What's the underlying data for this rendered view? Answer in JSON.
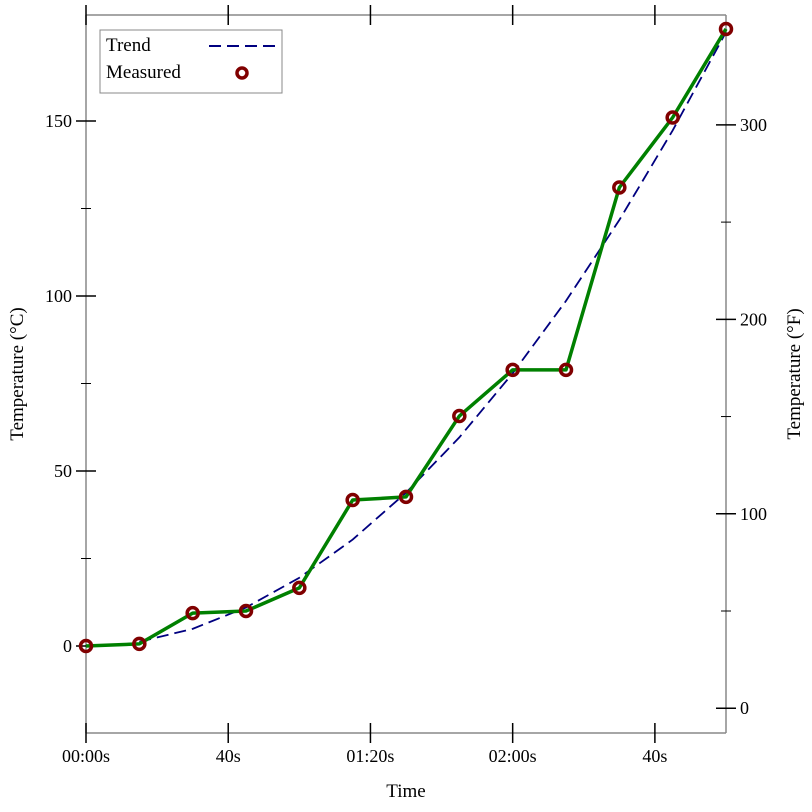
{
  "chart_data": {
    "type": "line",
    "xlabel": "Time",
    "ylabel": "Temperature (°C)",
    "ylabel_right": "Temperature (°F)",
    "xlim": [
      0,
      180
    ],
    "ylim": [
      -25,
      180
    ],
    "x_ticks": [
      {
        "value": 0,
        "label": "00:00s"
      },
      {
        "value": 40,
        "label": "40s"
      },
      {
        "value": 80,
        "label": "01:20s"
      },
      {
        "value": 120,
        "label": "02:00s"
      },
      {
        "value": 160,
        "label": "40s"
      }
    ],
    "y_ticks": [
      0,
      50,
      100,
      150
    ],
    "y_minor_ticks": [
      25,
      75,
      125
    ],
    "y_right_ticks": [
      0,
      100,
      200,
      300
    ],
    "y_right_minor_ticks": [
      50,
      150,
      250
    ],
    "grid": false,
    "legend": "top-left",
    "series": [
      {
        "name": "Trend",
        "style": "dashed",
        "color": "#000080",
        "x": [
          15,
          30,
          45,
          60,
          75,
          90,
          105,
          120,
          135,
          150,
          165,
          180
        ],
        "values": [
          1.2,
          4.9,
          11.0,
          19.5,
          30.4,
          43.8,
          59.6,
          77.9,
          98.6,
          121.7,
          147.3,
          175.4
        ]
      },
      {
        "name": "Measured",
        "style": "points",
        "color": "#800000",
        "line_color": "#008000",
        "x": [
          0,
          15,
          30,
          45,
          60,
          75,
          90,
          105,
          120,
          135,
          150,
          165,
          180
        ],
        "values": [
          0,
          0.6,
          9.4,
          10,
          16.6,
          41.7,
          42.6,
          65.7,
          78.9,
          78.9,
          131,
          151,
          176.3
        ]
      }
    ]
  }
}
